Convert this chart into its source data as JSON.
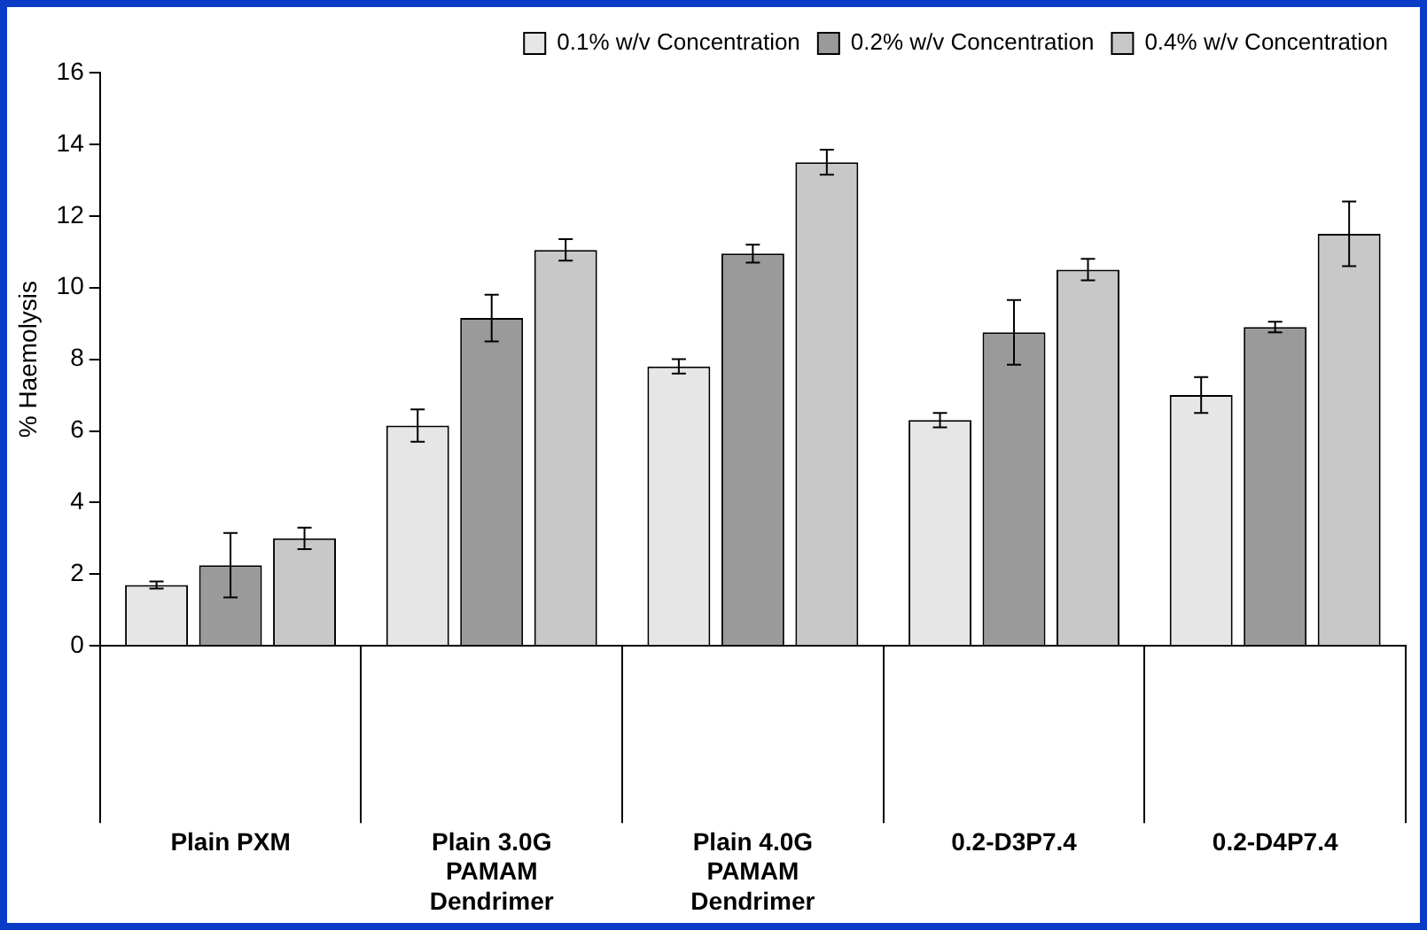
{
  "chart_data": {
    "type": "bar",
    "ylabel": "% Haemolysis",
    "categories": [
      "Plain PXM",
      "Plain 3.0G PAMAM Dendrimer",
      "Plain 4.0G PAMAM Dendrimer",
      "0.2-D3P7.4",
      "0.2-D4P7.4"
    ],
    "series": [
      {
        "name": "0.1% w/v Concentration",
        "color": "#e6e6e6",
        "values": [
          1.7,
          6.15,
          7.8,
          6.3,
          7.0
        ],
        "errors": [
          0.1,
          0.45,
          0.2,
          0.2,
          0.5
        ]
      },
      {
        "name": "0.2% w/v Concentration",
        "color": "#9a9a9a",
        "values": [
          2.25,
          9.15,
          10.95,
          8.75,
          8.9
        ],
        "errors": [
          0.9,
          0.65,
          0.25,
          0.9,
          0.15
        ]
      },
      {
        "name": "0.4% w/v Concentration",
        "color": "#c8c8c8",
        "values": [
          3.0,
          11.05,
          13.5,
          10.5,
          11.5
        ],
        "errors": [
          0.3,
          0.3,
          0.35,
          0.3,
          0.9
        ]
      }
    ],
    "ylim": [
      0,
      16
    ],
    "yticks": [
      0,
      2,
      4,
      6,
      8,
      10,
      12,
      14,
      16
    ],
    "grid": false,
    "legend": "top right"
  }
}
